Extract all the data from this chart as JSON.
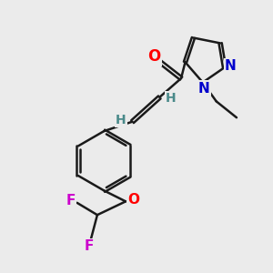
{
  "background_color": "#ebebeb",
  "bond_color": "#1a1a1a",
  "bond_width": 1.8,
  "atom_colors": {
    "O": "#ff0000",
    "N": "#0000cc",
    "F": "#cc00cc",
    "H": "#4a8a8a",
    "C": "#1a1a1a"
  },
  "font_size_atom": 11,
  "font_size_h": 10
}
